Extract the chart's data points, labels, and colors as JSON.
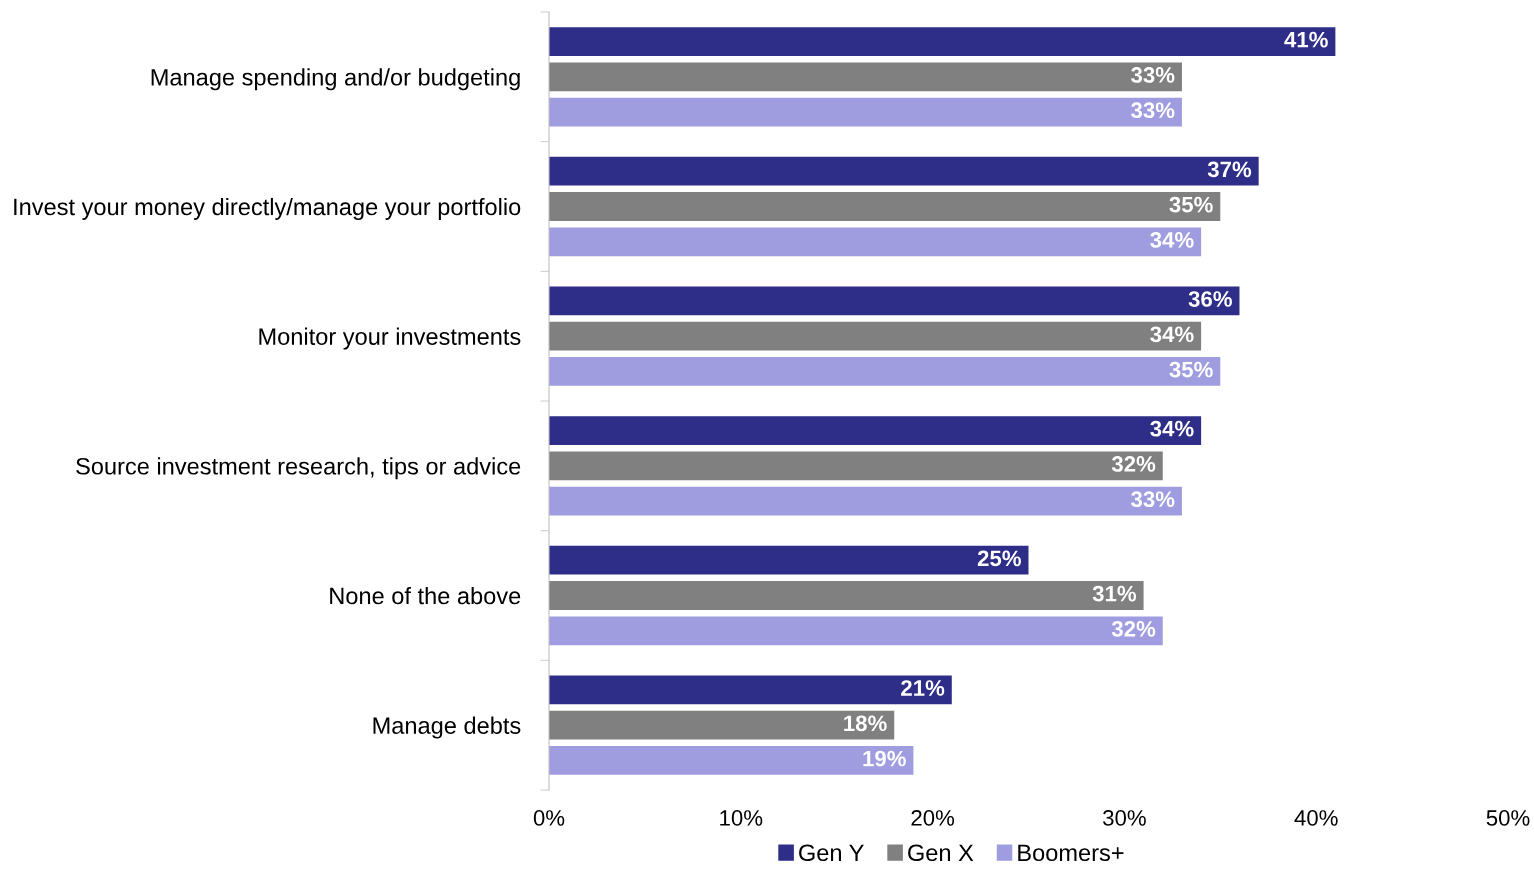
{
  "chart_data": {
    "type": "bar",
    "orientation": "horizontal",
    "categories": [
      "Manage spending and/or budgeting",
      "Invest your money directly/manage your portfolio",
      "Monitor your investments",
      "Source investment research, tips or advice",
      "None of the above",
      "Manage debts"
    ],
    "series": [
      {
        "name": "Gen Y",
        "color": "#2e2d87",
        "values": [
          41,
          37,
          36,
          34,
          25,
          21
        ],
        "value_labels": [
          "41%",
          "37%",
          "36%",
          "34%",
          "25%",
          "21%"
        ]
      },
      {
        "name": "Gen X",
        "color": "#808080",
        "values": [
          33,
          35,
          34,
          32,
          31,
          18
        ],
        "value_labels": [
          "33%",
          "35%",
          "34%",
          "32%",
          "31%",
          "18%"
        ]
      },
      {
        "name": "Boomers+",
        "color": "#9f9de0",
        "values": [
          33,
          34,
          35,
          33,
          32,
          19
        ],
        "value_labels": [
          "33%",
          "34%",
          "35%",
          "33%",
          "32%",
          "19%"
        ]
      }
    ],
    "xlim": [
      0,
      50
    ],
    "xticks": [
      {
        "value": 0,
        "label": "0%"
      },
      {
        "value": 10,
        "label": "10%"
      },
      {
        "value": 20,
        "label": "20%"
      },
      {
        "value": 30,
        "label": "30%"
      },
      {
        "value": 40,
        "label": "40%"
      },
      {
        "value": 50,
        "label": "50%"
      }
    ],
    "grid": false,
    "legend": "bottom"
  }
}
